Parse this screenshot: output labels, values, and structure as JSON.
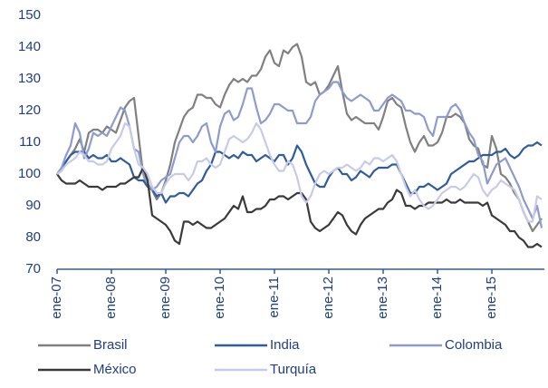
{
  "chart_data": {
    "type": "line",
    "categories": [
      "ene-07",
      null,
      null,
      null,
      null,
      null,
      null,
      null,
      null,
      null,
      null,
      null,
      "ene-08",
      null,
      null,
      null,
      null,
      null,
      null,
      null,
      null,
      null,
      null,
      null,
      "ene-09",
      null,
      null,
      null,
      null,
      null,
      null,
      null,
      null,
      null,
      null,
      null,
      "ene-10",
      null,
      null,
      null,
      null,
      null,
      null,
      null,
      null,
      null,
      null,
      null,
      "ene-11",
      null,
      null,
      null,
      null,
      null,
      null,
      null,
      null,
      null,
      null,
      null,
      "ene-12",
      null,
      null,
      null,
      null,
      null,
      null,
      null,
      null,
      null,
      null,
      null,
      "ene-13",
      null,
      null,
      null,
      null,
      null,
      null,
      null,
      null,
      null,
      null,
      null,
      "ene-14",
      null,
      null,
      null,
      null,
      null,
      null,
      null,
      null,
      null,
      null,
      null,
      "ene-15",
      null,
      null,
      null,
      null,
      null,
      null,
      null,
      null,
      null,
      null,
      null
    ],
    "ylim": [
      70,
      150
    ],
    "yticks": [
      70,
      80,
      90,
      100,
      110,
      120,
      130,
      140,
      150
    ],
    "grid": false,
    "series": [
      {
        "name": "Brasil",
        "color": "#808080",
        "values": [
          100,
          101,
          104,
          106,
          108,
          111,
          107,
          113,
          114,
          114,
          113,
          115,
          114,
          113,
          117,
          121,
          123,
          124,
          112,
          100,
          96,
          95,
          92,
          94,
          98,
          103,
          110,
          114,
          118,
          120,
          121,
          125,
          125,
          124,
          124,
          122,
          121,
          125,
          128,
          130,
          129,
          130,
          129,
          131,
          131,
          133,
          137,
          139,
          135,
          134,
          139,
          138,
          140,
          141,
          137,
          129,
          128,
          129,
          125,
          126,
          128,
          131,
          134,
          126,
          119,
          117,
          118,
          117,
          116,
          116,
          116,
          114,
          118,
          123,
          124,
          122,
          121,
          115,
          110,
          107,
          110,
          112,
          109,
          109,
          110,
          113,
          118,
          118,
          119,
          118,
          116,
          111,
          109,
          108,
          103,
          102,
          112,
          108,
          100,
          99,
          97,
          94,
          92,
          88,
          85,
          82,
          84,
          86
        ]
      },
      {
        "name": "India",
        "color": "#2f5c9e",
        "values": [
          100,
          102,
          104,
          106,
          107,
          107,
          107,
          105,
          106,
          105,
          105,
          106,
          104,
          104,
          105,
          104,
          103,
          99,
          98,
          98,
          96,
          95,
          93,
          94,
          91,
          93,
          93,
          94,
          94,
          93,
          95,
          97,
          98,
          101,
          103,
          107,
          107,
          106,
          105,
          106,
          105,
          107,
          106,
          106,
          104,
          105,
          106,
          105,
          104,
          106,
          106,
          103,
          105,
          109,
          107,
          103,
          100,
          97,
          96,
          96,
          99,
          101,
          102,
          100,
          100,
          98,
          99,
          101,
          100,
          99,
          101,
          102,
          102,
          102,
          103,
          103,
          100,
          97,
          94,
          94,
          96,
          96,
          97,
          96,
          95,
          96,
          97,
          100,
          101,
          102,
          103,
          104,
          104,
          105,
          106,
          106,
          106,
          107,
          107,
          108,
          106,
          105,
          106,
          108,
          109,
          109,
          110,
          109
        ]
      },
      {
        "name": "Colombia",
        "color": "#8d9bcf",
        "values": [
          100,
          102,
          106,
          109,
          116,
          113,
          105,
          108,
          113,
          112,
          113,
          112,
          115,
          118,
          121,
          120,
          115,
          108,
          107,
          100,
          97,
          95,
          96,
          98,
          99,
          100,
          105,
          110,
          112,
          112,
          110,
          112,
          115,
          116,
          110,
          107,
          115,
          119,
          120,
          117,
          118,
          122,
          127,
          127,
          121,
          116,
          117,
          119,
          122,
          122,
          121,
          120,
          120,
          116,
          116,
          116,
          118,
          123,
          125,
          126,
          127,
          129,
          129,
          126,
          124,
          123,
          124,
          125,
          124,
          123,
          120,
          120,
          122,
          124,
          125,
          124,
          123,
          120,
          120,
          119,
          119,
          118,
          114,
          112,
          118,
          118,
          118,
          121,
          122,
          120,
          116,
          113,
          111,
          106,
          104,
          97,
          100,
          103,
          104,
          105,
          102,
          99,
          96,
          92,
          89,
          86,
          90,
          83
        ]
      },
      {
        "name": "México",
        "color": "#3a3a3a",
        "values": [
          100,
          98,
          97,
          97,
          97,
          98,
          97,
          96,
          96,
          96,
          95,
          96,
          96,
          96,
          97,
          97,
          98,
          99,
          99,
          102,
          98,
          87,
          86,
          85,
          84,
          82,
          79,
          78,
          85,
          85,
          84,
          85,
          84,
          83,
          83,
          84,
          85,
          86,
          88,
          90,
          89,
          93,
          88,
          88,
          89,
          89,
          90,
          92,
          92,
          93,
          93,
          92,
          93,
          94,
          94,
          92,
          85,
          83,
          82,
          83,
          84,
          86,
          88,
          87,
          84,
          82,
          81,
          84,
          86,
          87,
          88,
          89,
          89,
          91,
          92,
          95,
          94,
          90,
          90,
          89,
          90,
          90,
          91,
          91,
          91,
          91,
          92,
          91,
          91,
          92,
          91,
          91,
          91,
          91,
          90,
          91,
          87,
          86,
          85,
          84,
          82,
          82,
          80,
          79,
          77,
          77,
          78,
          77
        ]
      },
      {
        "name": "Turquía",
        "color": "#c6cbe8",
        "values": [
          100,
          101,
          103,
          104,
          105,
          107,
          106,
          104,
          104,
          103,
          103,
          104,
          108,
          110,
          112,
          116,
          115,
          108,
          103,
          102,
          100,
          96,
          94,
          94,
          97,
          99,
          100,
          100,
          100,
          98,
          100,
          104,
          104,
          105,
          103,
          102,
          103,
          107,
          111,
          112,
          111,
          110,
          111,
          113,
          116,
          114,
          110,
          106,
          103,
          101,
          101,
          104,
          103,
          99,
          93,
          91,
          93,
          97,
          100,
          101,
          100,
          101,
          102,
          102,
          103,
          102,
          101,
          102,
          104,
          103,
          105,
          105,
          104,
          105,
          106,
          104,
          100,
          96,
          93,
          95,
          92,
          90,
          89,
          90,
          92,
          94,
          95,
          96,
          96,
          95,
          96,
          98,
          100,
          99,
          95,
          93,
          95,
          96,
          98,
          97,
          96,
          95,
          92,
          88,
          85,
          85,
          93,
          92
        ]
      }
    ]
  }
}
